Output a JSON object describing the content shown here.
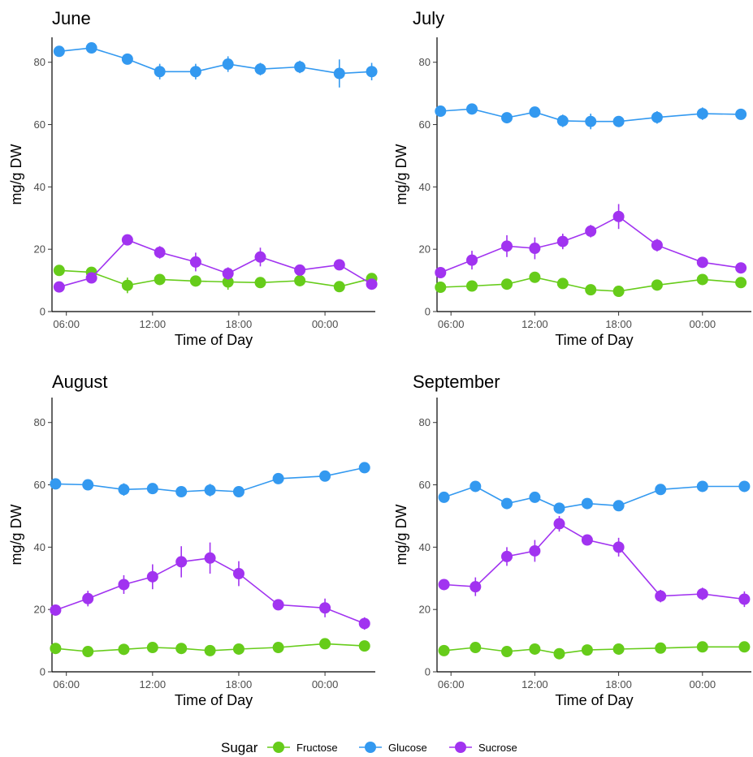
{
  "colors": {
    "Fructose": "#66cc1a",
    "Glucose": "#3399f0",
    "Sucrose": "#a133f0"
  },
  "legend": {
    "title": "Sugar"
  },
  "chart_data": [
    {
      "type": "line",
      "title": "June",
      "xlabel": "Time of Day",
      "ylabel": "mg/g DW",
      "ylim": [
        0,
        88
      ],
      "xlim": [
        "05:00",
        "03:30 (+1 day)"
      ],
      "x_ticks": [
        "06:00",
        "12:00",
        "18:00",
        "00:00"
      ],
      "y_ticks": [
        0,
        20,
        40,
        60,
        80
      ],
      "x": [
        "05:30",
        "07:45",
        "10:15",
        "12:30",
        "15:00",
        "17:15",
        "19:30",
        "22:15",
        "01:00",
        "03:15"
      ],
      "series": [
        {
          "name": "Fructose",
          "values": [
            13.2,
            12.6,
            8.4,
            10.3,
            9.8,
            9.5,
            9.3,
            9.9,
            8.0,
            10.6
          ],
          "errors": [
            0.8,
            0.8,
            2.5,
            1.0,
            1.0,
            2.5,
            1.0,
            1.5,
            1.0,
            1.0
          ]
        },
        {
          "name": "Glucose",
          "values": [
            83.5,
            84.6,
            81.0,
            77.0,
            77.0,
            79.4,
            77.8,
            78.5,
            76.4,
            77.0
          ],
          "errors": [
            0.8,
            0.8,
            1.5,
            2.5,
            2.5,
            2.5,
            2.0,
            2.0,
            4.5,
            2.8
          ]
        },
        {
          "name": "Sucrose",
          "values": [
            7.9,
            10.8,
            23.0,
            19.0,
            15.9,
            12.2,
            17.5,
            13.3,
            15.0,
            8.8
          ],
          "errors": [
            0.8,
            1.5,
            1.2,
            2.0,
            3.0,
            2.0,
            3.0,
            1.5,
            1.0,
            1.0
          ]
        }
      ]
    },
    {
      "type": "line",
      "title": "July",
      "xlabel": "Time of Day",
      "ylabel": "mg/g DW",
      "ylim": [
        0,
        88
      ],
      "xlim": [
        "05:00",
        "03:30 (+1 day)"
      ],
      "x_ticks": [
        "06:00",
        "12:00",
        "18:00",
        "00:00"
      ],
      "y_ticks": [
        0,
        20,
        40,
        60,
        80
      ],
      "x": [
        "05:15",
        "07:30",
        "10:00",
        "12:00",
        "14:00",
        "16:00",
        "18:00",
        "20:45",
        "00:00",
        "02:45"
      ],
      "series": [
        {
          "name": "Fructose",
          "values": [
            7.8,
            8.2,
            8.8,
            11.0,
            9.0,
            7.0,
            6.5,
            8.5,
            10.3,
            9.3
          ],
          "errors": [
            0.8,
            0.8,
            1.0,
            1.5,
            1.5,
            1.5,
            1.0,
            1.0,
            1.0,
            1.0
          ]
        },
        {
          "name": "Glucose",
          "values": [
            64.3,
            65.0,
            62.2,
            64.0,
            61.2,
            61.0,
            61.0,
            62.3,
            63.5,
            63.3
          ],
          "errors": [
            1.0,
            0.8,
            0.8,
            1.0,
            2.0,
            2.5,
            1.0,
            2.0,
            2.0,
            1.0
          ]
        },
        {
          "name": "Sucrose",
          "values": [
            12.5,
            16.5,
            21.0,
            20.3,
            22.5,
            25.8,
            30.5,
            21.3,
            15.8,
            14.0
          ],
          "errors": [
            1.0,
            3.0,
            3.5,
            3.5,
            2.5,
            2.0,
            4.0,
            2.0,
            1.0,
            1.0
          ]
        }
      ]
    },
    {
      "type": "line",
      "title": "August",
      "xlabel": "Time of Day",
      "ylabel": "mg/g DW",
      "ylim": [
        0,
        88
      ],
      "xlim": [
        "05:00",
        "03:30 (+1 day)"
      ],
      "x_ticks": [
        "06:00",
        "12:00",
        "18:00",
        "00:00"
      ],
      "y_ticks": [
        0,
        20,
        40,
        60,
        80
      ],
      "x": [
        "05:15",
        "07:30",
        "10:00",
        "12:00",
        "14:00",
        "16:00",
        "18:00",
        "20:45",
        "00:00",
        "02:45"
      ],
      "series": [
        {
          "name": "Fructose",
          "values": [
            7.5,
            6.5,
            7.2,
            7.8,
            7.5,
            6.8,
            7.3,
            7.8,
            9.0,
            8.3
          ],
          "errors": [
            0.8,
            0.8,
            0.8,
            0.8,
            0.8,
            0.8,
            0.8,
            0.8,
            1.0,
            1.0
          ]
        },
        {
          "name": "Glucose",
          "values": [
            60.3,
            60.0,
            58.5,
            58.8,
            57.8,
            58.3,
            57.8,
            62.0,
            62.8,
            65.5
          ],
          "errors": [
            0.8,
            0.8,
            2.0,
            1.5,
            1.0,
            2.0,
            1.0,
            0.8,
            1.0,
            0.8
          ]
        },
        {
          "name": "Sucrose",
          "values": [
            19.8,
            23.5,
            28.0,
            30.5,
            35.3,
            36.5,
            31.5,
            21.5,
            20.5,
            15.5
          ],
          "errors": [
            1.0,
            2.5,
            3.0,
            4.0,
            5.0,
            5.0,
            4.0,
            1.5,
            3.0,
            2.0
          ]
        }
      ]
    },
    {
      "type": "line",
      "title": "September",
      "xlabel": "Time of Day",
      "ylabel": "mg/g DW",
      "ylim": [
        0,
        88
      ],
      "xlim": [
        "05:00",
        "03:30 (+1 day)"
      ],
      "x_ticks": [
        "06:00",
        "12:00",
        "18:00",
        "00:00"
      ],
      "y_ticks": [
        0,
        20,
        40,
        60,
        80
      ],
      "x": [
        "05:30",
        "07:45",
        "10:00",
        "12:00",
        "13:45",
        "15:45",
        "18:00",
        "21:00",
        "00:00",
        "03:00"
      ],
      "series": [
        {
          "name": "Fructose",
          "values": [
            6.8,
            7.8,
            6.5,
            7.3,
            5.8,
            7.0,
            7.3,
            7.6,
            8.0,
            8.0
          ],
          "errors": [
            0.8,
            0.8,
            0.8,
            0.8,
            0.8,
            0.8,
            0.8,
            0.8,
            0.8,
            0.8
          ]
        },
        {
          "name": "Glucose",
          "values": [
            56.0,
            59.5,
            54.0,
            56.0,
            52.5,
            54.0,
            53.3,
            58.5,
            59.5,
            59.5
          ],
          "errors": [
            0.8,
            0.8,
            0.8,
            1.0,
            1.5,
            1.0,
            0.8,
            1.0,
            1.0,
            0.8
          ]
        },
        {
          "name": "Sucrose",
          "values": [
            28.0,
            27.3,
            37.0,
            38.8,
            47.5,
            42.3,
            40.0,
            24.3,
            25.0,
            23.3
          ],
          "errors": [
            1.0,
            3.0,
            3.0,
            3.5,
            2.5,
            1.0,
            3.0,
            2.0,
            2.0,
            2.5
          ]
        }
      ]
    }
  ]
}
